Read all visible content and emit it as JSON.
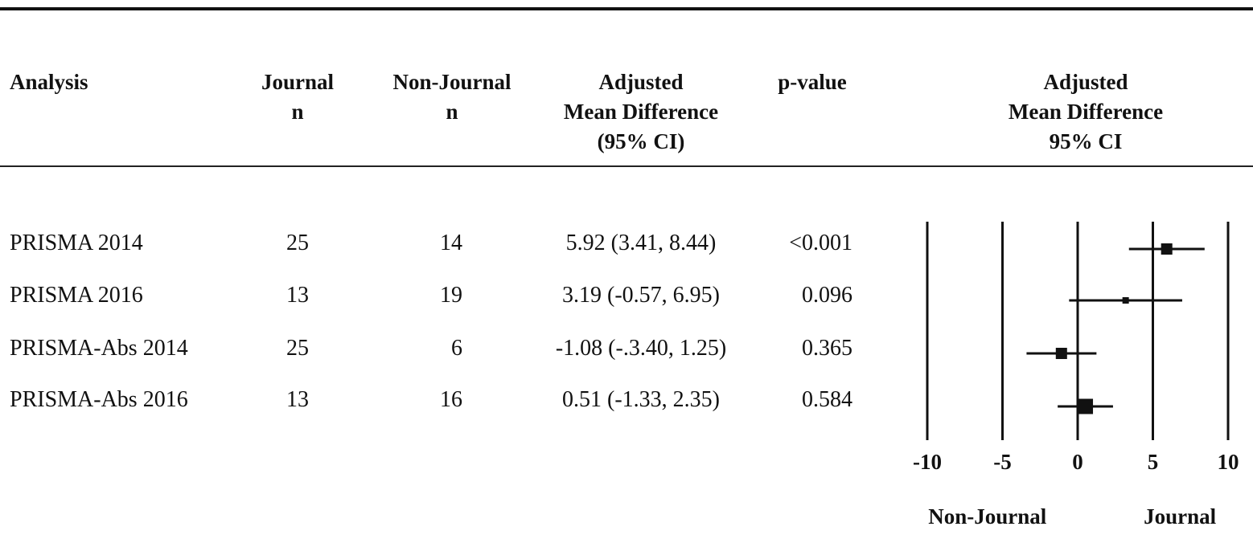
{
  "table": {
    "headers": {
      "analysis": "Analysis",
      "journal_n": [
        "Journal",
        "n"
      ],
      "nonjournal_n": [
        "Non-Journal",
        "n"
      ],
      "amd_ci": [
        "Adjusted",
        "Mean Difference",
        "(95% CI)"
      ],
      "p_value": "p-value",
      "plot_header": [
        "Adjusted",
        "Mean Difference",
        "95% CI"
      ]
    },
    "rows": [
      {
        "analysis": "PRISMA 2014",
        "journal_n": "25",
        "nonjournal_n": "14",
        "amd_ci": "5.92 (3.41, 8.44)",
        "p_value": "<0.001"
      },
      {
        "analysis": "PRISMA 2016",
        "journal_n": "13",
        "nonjournal_n": "19",
        "amd_ci": "3.19 (-0.57, 6.95)",
        "p_value": "0.096"
      },
      {
        "analysis": "PRISMA-Abs 2014",
        "journal_n": "25",
        "nonjournal_n": "6",
        "amd_ci": "-1.08 (-.3.40, 1.25)",
        "p_value": "0.365"
      },
      {
        "analysis": "PRISMA-Abs 2016",
        "journal_n": "13",
        "nonjournal_n": "16",
        "amd_ci": "0.51 (-1.33, 2.35)",
        "p_value": "0.584"
      }
    ]
  },
  "chart_data": {
    "type": "scatter",
    "subtype": "forest",
    "categories": [
      "PRISMA 2014",
      "PRISMA 2016",
      "PRISMA-Abs 2014",
      "PRISMA-Abs 2016"
    ],
    "estimates": [
      5.92,
      3.19,
      -1.08,
      0.51
    ],
    "ci_lower": [
      3.41,
      -0.57,
      -3.4,
      -1.33
    ],
    "ci_upper": [
      8.44,
      6.95,
      1.25,
      2.35
    ],
    "marker_weight": [
      14,
      8,
      14,
      19
    ],
    "xlim": [
      -10,
      10
    ],
    "xticks": [
      -10,
      -5,
      0,
      5,
      10
    ],
    "tick_labels": [
      "-10",
      "-5",
      "0",
      "5",
      "10"
    ],
    "reference_lines": [
      -10,
      -5,
      0,
      5,
      10
    ],
    "favours_left": "Non-Journal",
    "favours_right": "Journal"
  }
}
